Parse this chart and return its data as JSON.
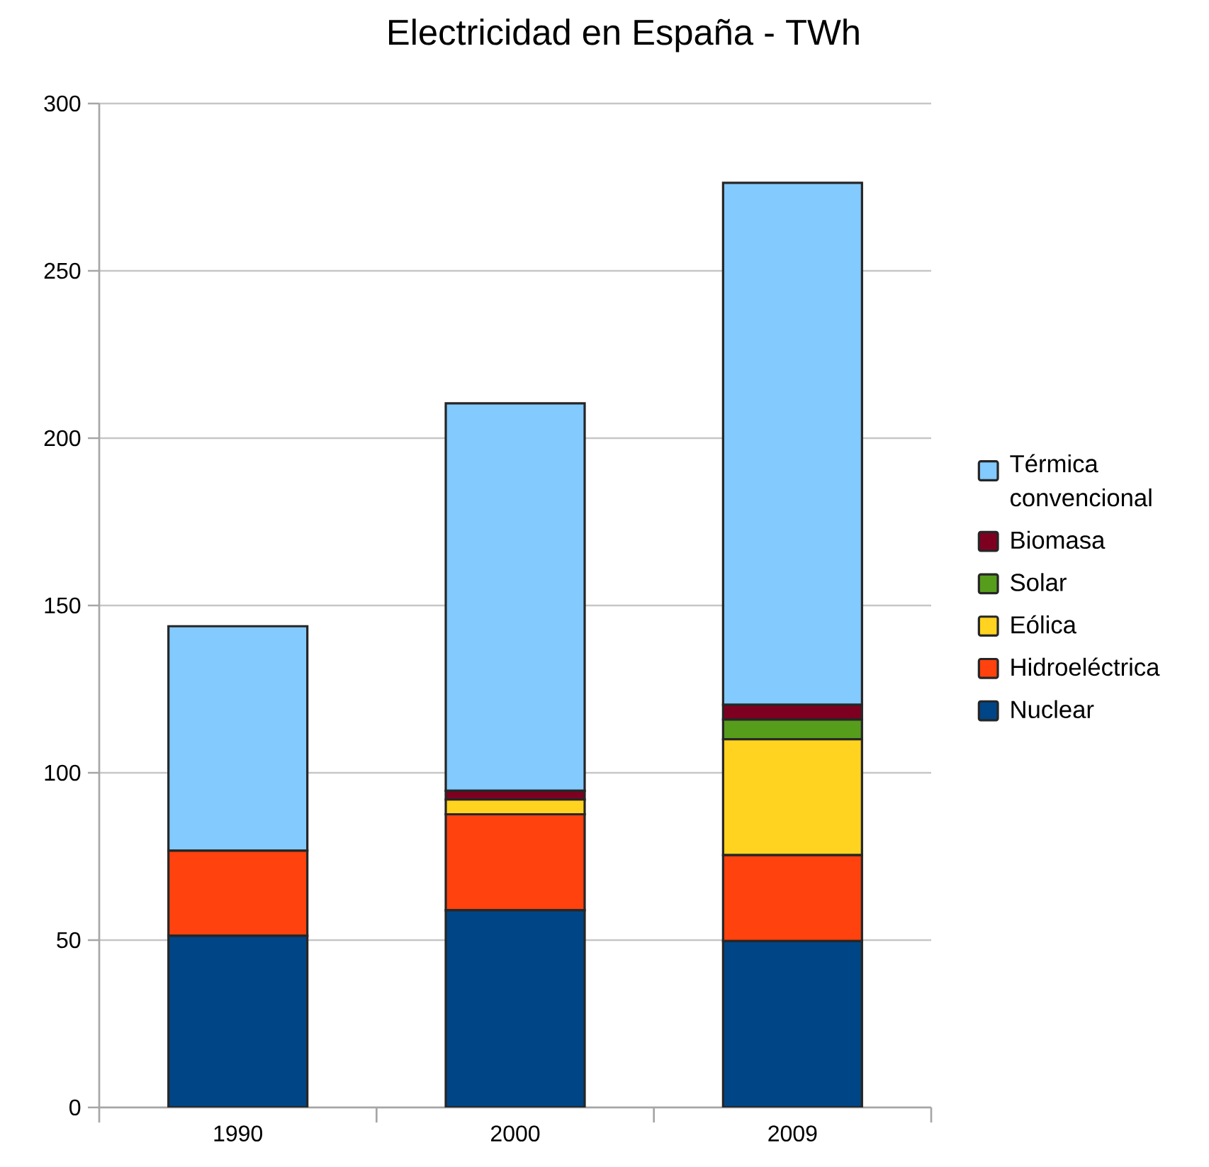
{
  "chart_data": {
    "type": "bar",
    "title": "Electricidad en España - TWh",
    "stacked": true,
    "categories": [
      "1990",
      "2000",
      "2009"
    ],
    "series": [
      {
        "name": "Nuclear",
        "color": "#004586",
        "values": [
          51.3,
          58.9,
          49.7
        ]
      },
      {
        "name": "Hidroeléctrica",
        "color": "#ff420e",
        "values": [
          25.4,
          28.7,
          25.7
        ]
      },
      {
        "name": "Eólica",
        "color": "#ffd320",
        "values": [
          0,
          4.4,
          34.6
        ]
      },
      {
        "name": "Solar",
        "color": "#579d1c",
        "values": [
          0,
          0,
          5.9
        ]
      },
      {
        "name": "Biomasa",
        "color": "#7e0021",
        "values": [
          0,
          2.6,
          4.4
        ]
      },
      {
        "name": "Térmica convencional",
        "color": "#83caff",
        "values": [
          67.1,
          115.8,
          156.0
        ]
      }
    ],
    "ylim": [
      0,
      300
    ],
    "yticks": [
      0,
      50,
      100,
      150,
      200,
      250,
      300
    ],
    "grid": "y",
    "legend": "right"
  }
}
